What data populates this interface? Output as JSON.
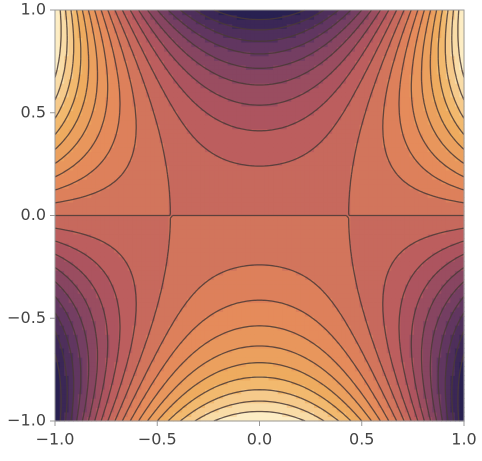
{
  "chart_data": {
    "type": "contour",
    "xlim": [
      -1,
      1
    ],
    "ylim": [
      -1,
      1
    ],
    "xticks": [
      {
        "value": -1,
        "label": "−1.0"
      },
      {
        "value": -0.5,
        "label": "−0.5"
      },
      {
        "value": 0,
        "label": "0.0"
      },
      {
        "value": 0.5,
        "label": "0.5"
      },
      {
        "value": 1,
        "label": "1.0"
      }
    ],
    "yticks": [
      {
        "value": -1,
        "label": "−1.0"
      },
      {
        "value": -0.5,
        "label": "−0.5"
      },
      {
        "value": 0,
        "label": "0.0"
      },
      {
        "value": 0.5,
        "label": "0.5"
      },
      {
        "value": 1,
        "label": "1.0"
      }
    ],
    "contour_levels": [
      -0.45,
      -0.4,
      -0.35,
      -0.3,
      -0.25,
      -0.2,
      -0.15,
      -0.1,
      -0.05,
      0,
      0.05,
      0.1,
      0.15,
      0.2,
      0.25,
      0.3,
      0.35,
      0.4,
      0.45
    ],
    "colormap": [
      "#1f1c4f",
      "#6a3a62",
      "#b6585e",
      "#e3865a",
      "#f0b060",
      "#fff6d2"
    ],
    "line_color": "#4a3a36"
  }
}
